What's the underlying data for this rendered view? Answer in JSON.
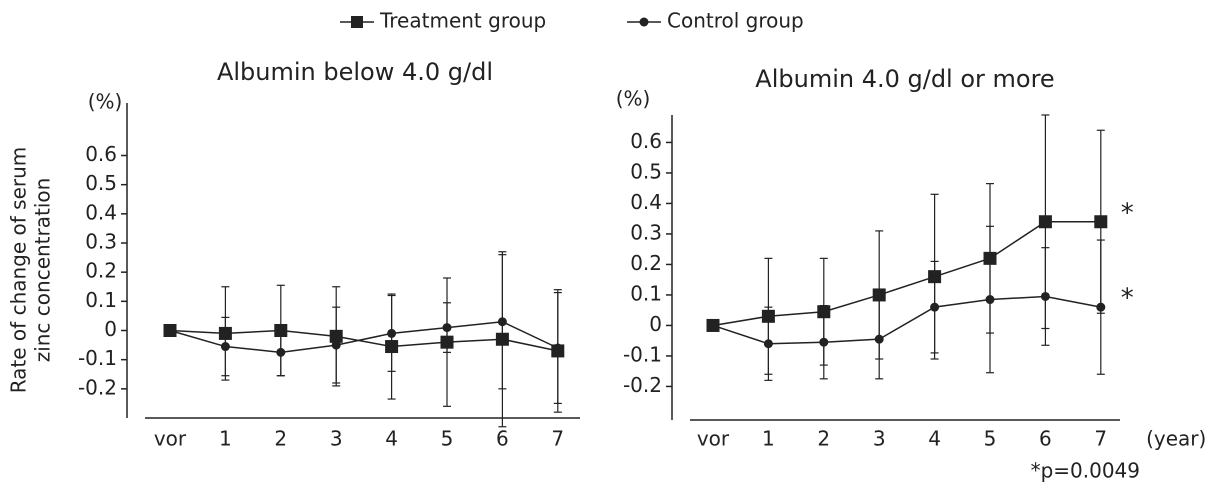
{
  "legend": {
    "position": "top"
  },
  "chart_data": [
    {
      "type": "line",
      "title": "Albumin below 4.0 g/dl",
      "y_label": [
        "Rate of change of serum",
        "zinc concentration"
      ],
      "y_unit": "(%)",
      "categories": [
        "vor",
        "1",
        "2",
        "3",
        "4",
        "5",
        "6",
        "7"
      ],
      "ylim": [
        -0.3,
        0.78
      ],
      "yticks": [
        -0.2,
        -0.1,
        0,
        0.1,
        0.2,
        0.3,
        0.4,
        0.5,
        0.6
      ],
      "series": [
        {
          "name": "Treatment group",
          "color": "#222222",
          "marker": "square",
          "values": [
            0,
            -0.01,
            0,
            -0.02,
            -0.055,
            -0.04,
            -0.03,
            -0.07
          ],
          "errors": [
            0,
            0.16,
            0.155,
            0.17,
            0.18,
            0.22,
            0.3,
            0.21
          ]
        },
        {
          "name": "Control group",
          "color": "#222222",
          "marker": "circle",
          "values": [
            0,
            -0.055,
            -0.075,
            -0.05,
            -0.01,
            0.01,
            0.03,
            -0.06
          ],
          "errors": [
            0,
            0.1,
            0.08,
            0.13,
            0.13,
            0.085,
            0.23,
            0.19
          ]
        }
      ]
    },
    {
      "type": "line",
      "title": "Albumin 4.0 g/dl or more",
      "y_unit": "(%)",
      "x_unit": "(year)",
      "note": "*p=0.0049",
      "categories": [
        "vor",
        "1",
        "2",
        "3",
        "4",
        "5",
        "6",
        "7"
      ],
      "ylim": [
        -0.31,
        0.69
      ],
      "yticks": [
        -0.2,
        -0.1,
        0,
        0.1,
        0.2,
        0.3,
        0.4,
        0.5,
        0.6
      ],
      "series": [
        {
          "color": "#222222",
          "marker": "square",
          "annotation": "*",
          "values": [
            0,
            0.03,
            0.045,
            0.1,
            0.16,
            0.22,
            0.34,
            0.34
          ],
          "errors": [
            0,
            0.19,
            0.175,
            0.21,
            0.27,
            0.245,
            0.35,
            0.3
          ]
        },
        {
          "color": "#222222",
          "marker": "circle",
          "annotation": "*",
          "values": [
            0,
            -0.06,
            -0.055,
            -0.045,
            0.06,
            0.085,
            0.095,
            0.06
          ],
          "errors": [
            0,
            0.12,
            0.12,
            0.13,
            0.15,
            0.24,
            0.16,
            0.22
          ]
        }
      ]
    }
  ]
}
